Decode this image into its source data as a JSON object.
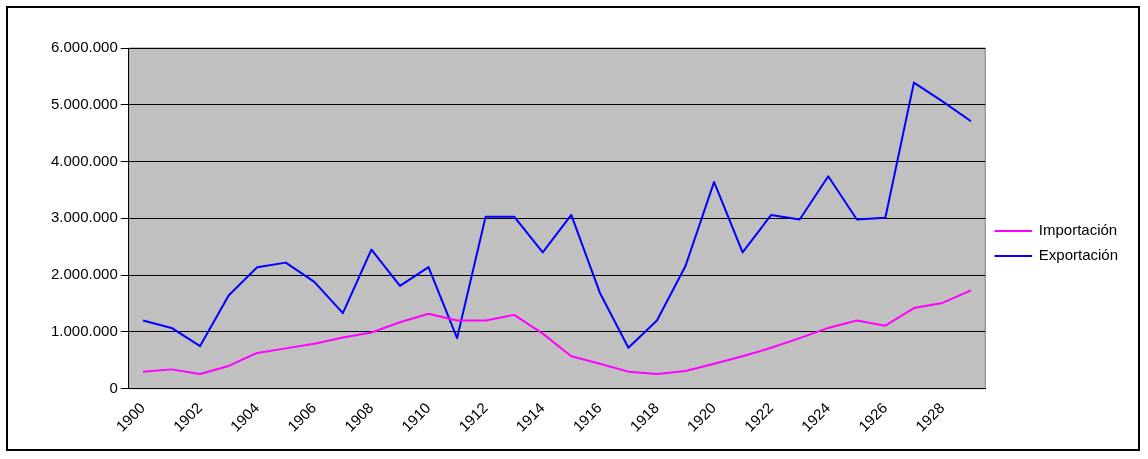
{
  "chart_data": {
    "type": "line",
    "categories": [
      "1900",
      null,
      "1902",
      null,
      "1904",
      null,
      "1906",
      null,
      "1908",
      null,
      "1910",
      null,
      "1912",
      null,
      "1914",
      null,
      "1916",
      null,
      "1918",
      null,
      "1920",
      null,
      "1922",
      null,
      "1924",
      null,
      "1926",
      null,
      "1928",
      null
    ],
    "series": [
      {
        "name": "Importación",
        "color": "#ff00ff",
        "values": [
          300000,
          340000,
          260000,
          400000,
          630000,
          710000,
          790000,
          900000,
          990000,
          1170000,
          1320000,
          1200000,
          1200000,
          1300000,
          970000,
          570000,
          440000,
          300000,
          260000,
          310000,
          440000,
          570000,
          720000,
          890000,
          1070000,
          1200000,
          1110000,
          1420000,
          1510000,
          1730000
        ]
      },
      {
        "name": "Exportación",
        "color": "#0000ff",
        "values": [
          1200000,
          1070000,
          750000,
          1640000,
          2140000,
          2220000,
          1880000,
          1330000,
          2450000,
          1810000,
          2140000,
          890000,
          3030000,
          3030000,
          2400000,
          3060000,
          1690000,
          720000,
          1200000,
          2160000,
          3640000,
          2400000,
          3060000,
          2980000,
          3740000,
          2980000,
          3010000,
          5390000,
          5060000,
          4710000
        ]
      }
    ],
    "ylim": [
      0,
      6000000
    ],
    "yticks": [
      {
        "value": 0,
        "label": "0"
      },
      {
        "value": 1000000,
        "label": "1.000.000"
      },
      {
        "value": 2000000,
        "label": "2.000.000"
      },
      {
        "value": 3000000,
        "label": "3.000.000"
      },
      {
        "value": 4000000,
        "label": "4.000.000"
      },
      {
        "value": 5000000,
        "label": "5.000.000"
      },
      {
        "value": 6000000,
        "label": "6.000.000"
      }
    ],
    "grid": "y",
    "legend": "right",
    "marker": "none",
    "line_style": "solid"
  }
}
